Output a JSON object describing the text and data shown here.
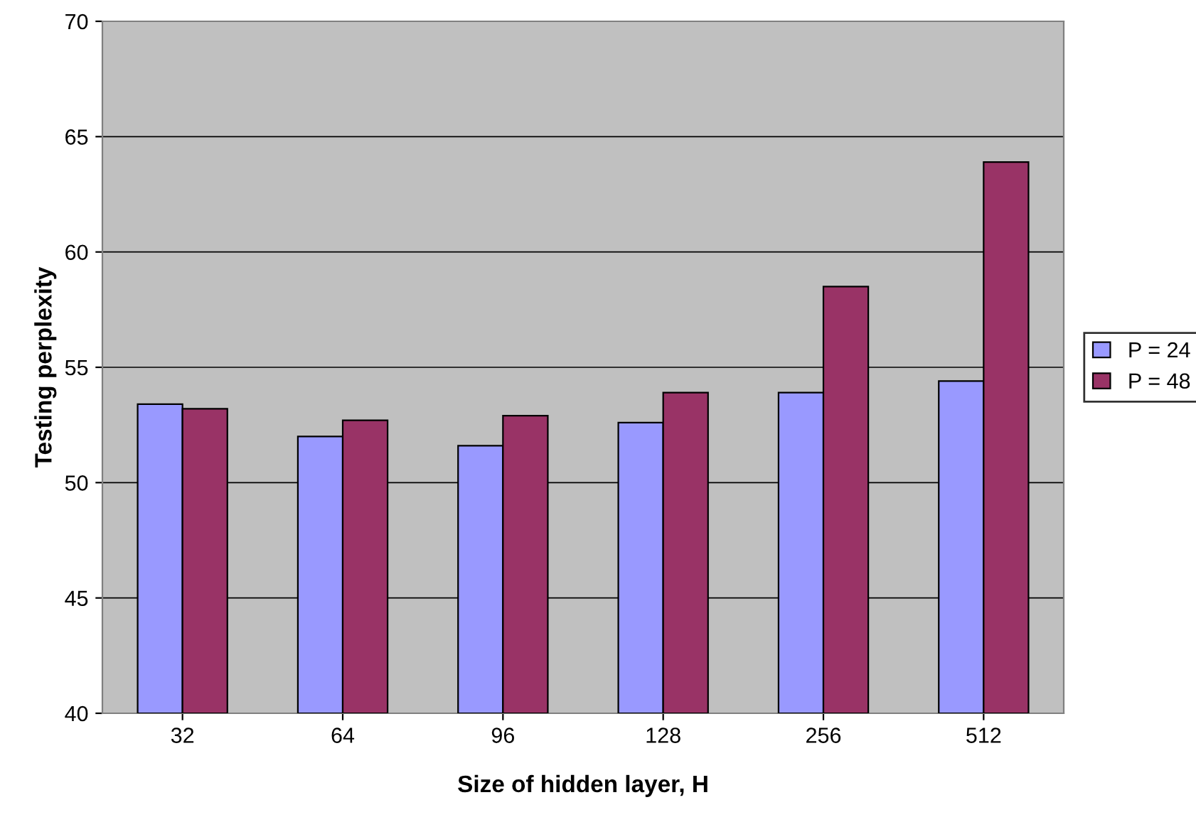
{
  "chart_data": {
    "type": "bar",
    "xlabel": "Size of hidden layer, H",
    "ylabel": "Testing perplexity",
    "categories": [
      "32",
      "64",
      "96",
      "128",
      "256",
      "512"
    ],
    "series": [
      {
        "name": "P = 24",
        "color": "#9999ff",
        "values": [
          53.4,
          52.0,
          51.6,
          52.6,
          53.9,
          54.4
        ]
      },
      {
        "name": "P = 48",
        "color": "#993366",
        "values": [
          53.2,
          52.7,
          52.9,
          53.9,
          58.5,
          63.9
        ]
      }
    ],
    "ylim": [
      40,
      70
    ],
    "yticks": [
      40,
      45,
      50,
      55,
      60,
      65,
      70
    ],
    "grid": "y",
    "legend": "right"
  }
}
